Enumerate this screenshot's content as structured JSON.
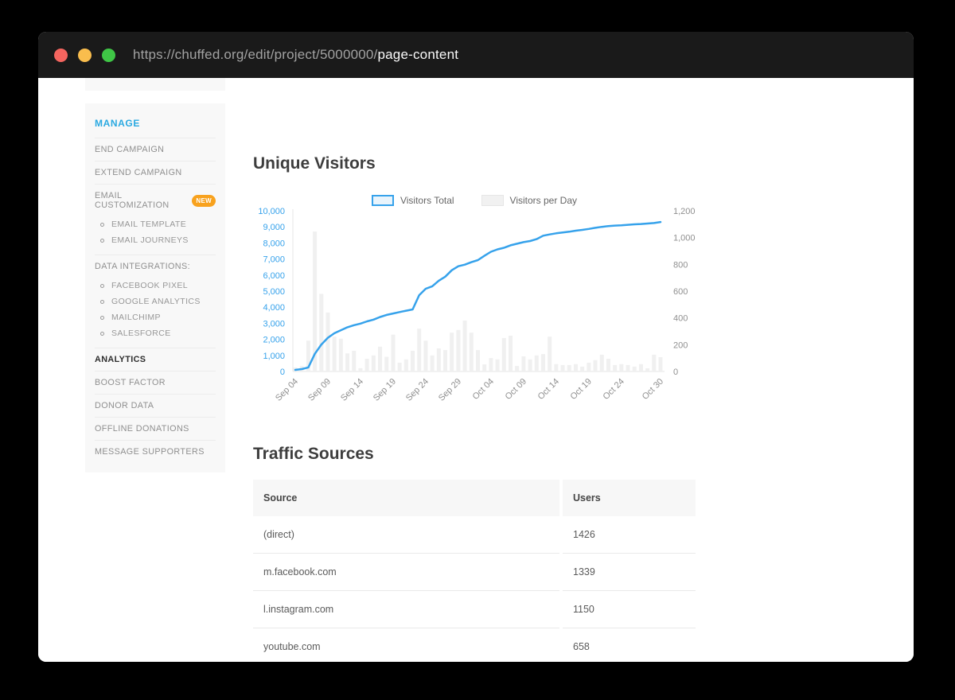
{
  "browser": {
    "url_prefix": "https://chuffed.org/edit/project/5000000/",
    "url_current": "page-content"
  },
  "sidebar": {
    "section_header": "MANAGE",
    "accent_color": "#2aa9e1",
    "badge_color": "#f8a21e",
    "items": [
      {
        "label": "END CAMPAIGN"
      },
      {
        "label": "EXTEND CAMPAIGN"
      },
      {
        "label": "EMAIL CUSTOMIZATION",
        "badge": "NEW",
        "children": [
          "EMAIL TEMPLATE",
          "EMAIL JOURNEYS"
        ]
      },
      {
        "label": "DATA INTEGRATIONS:",
        "children": [
          "FACEBOOK PIXEL",
          "GOOGLE ANALYTICS",
          "MAILCHIMP",
          "SALESFORCE"
        ]
      },
      {
        "label": "ANALYTICS",
        "active": true
      },
      {
        "label": "BOOST FACTOR"
      },
      {
        "label": "DONOR DATA"
      },
      {
        "label": "OFFLINE DONATIONS"
      },
      {
        "label": "MESSAGE SUPPORTERS"
      }
    ]
  },
  "analytics": {
    "visitors_title": "Unique Visitors",
    "traffic_title": "Traffic Sources",
    "table": {
      "headers": [
        "Source",
        "Users"
      ],
      "rows": [
        {
          "source": "(direct)",
          "users": "1426"
        },
        {
          "source": "m.facebook.com",
          "users": "1339"
        },
        {
          "source": "l.instagram.com",
          "users": "1150"
        },
        {
          "source": "youtube.com",
          "users": "658"
        }
      ]
    }
  },
  "chart_data": {
    "type": "line+bar",
    "title": "Unique Visitors",
    "legend_position": "top",
    "grid": false,
    "x_tick_labels": [
      "Sep 04",
      "Sep 09",
      "Sep 14",
      "Sep 19",
      "Sep 24",
      "Sep 29",
      "Oct 04",
      "Oct 09",
      "Oct 14",
      "Oct 19",
      "Oct 24",
      "Oct 30"
    ],
    "x_tick_day_index": [
      0,
      5,
      10,
      15,
      20,
      25,
      30,
      35,
      40,
      45,
      50,
      56
    ],
    "left_axis": {
      "min": 0,
      "max": 10000,
      "step": 1000,
      "color": "#36a2eb"
    },
    "right_axis": {
      "min": 0,
      "max": 1200,
      "step": 200,
      "color": "#8f8f8f"
    },
    "series": [
      {
        "name": "Visitors Total",
        "type": "line",
        "axis": "left",
        "color": "#36a2eb",
        "values": [
          100,
          150,
          250,
          1100,
          1680,
          2100,
          2380,
          2570,
          2750,
          2880,
          2980,
          3120,
          3230,
          3390,
          3520,
          3610,
          3700,
          3780,
          3860,
          4750,
          5150,
          5300,
          5650,
          5900,
          6300,
          6550,
          6650,
          6800,
          6930,
          7200,
          7450,
          7600,
          7700,
          7850,
          7950,
          8050,
          8120,
          8240,
          8450,
          8530,
          8600,
          8650,
          8700,
          8760,
          8810,
          8870,
          8940,
          9000,
          9050,
          9080,
          9100,
          9130,
          9160,
          9180,
          9210,
          9240,
          9300
        ]
      },
      {
        "name": "Visitors per Day",
        "type": "bar",
        "axis": "right",
        "color": "#f0f0f0",
        "values": [
          30,
          40,
          230,
          1045,
          580,
          440,
          260,
          245,
          135,
          155,
          25,
          95,
          120,
          185,
          110,
          275,
          65,
          90,
          155,
          320,
          230,
          120,
          172,
          160,
          290,
          310,
          380,
          290,
          160,
          53,
          100,
          90,
          250,
          267,
          41,
          113,
          90,
          120,
          130,
          260,
          55,
          48,
          48,
          55,
          36,
          65,
          85,
          125,
          95,
          48,
          55,
          48,
          36,
          55,
          24,
          125,
          107
        ]
      }
    ]
  }
}
